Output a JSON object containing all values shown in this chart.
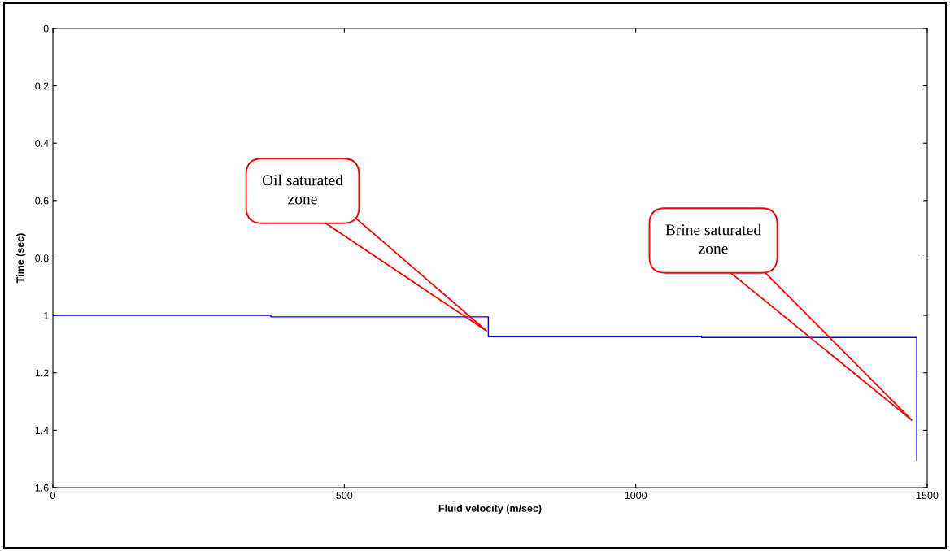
{
  "chart_data": {
    "type": "line",
    "xlabel": "Fluid velocity (m/sec)",
    "ylabel": "Time (sec)",
    "series": [
      {
        "color": "#0000ff",
        "x": [
          0,
          374,
          374,
          747,
          747,
          1113,
          1113,
          1482,
          1482
        ],
        "values": [
          1.0,
          1.0,
          1.005,
          1.005,
          1.074,
          1.074,
          1.077,
          1.077,
          1.504
        ]
      }
    ],
    "xlim": [
      0,
      1500
    ],
    "xticks": [
      0,
      500,
      1000,
      1500
    ],
    "ylim": [
      1.6,
      0
    ],
    "yticks": [
      0,
      0.2,
      0.4,
      0.6,
      0.8,
      1,
      1.2,
      1.4,
      1.6
    ],
    "grid": false,
    "legend": false,
    "marker": "none",
    "line_style": "solid",
    "annotations": [
      "Oil saturated\nzone",
      "Brine saturated\nzone"
    ]
  }
}
